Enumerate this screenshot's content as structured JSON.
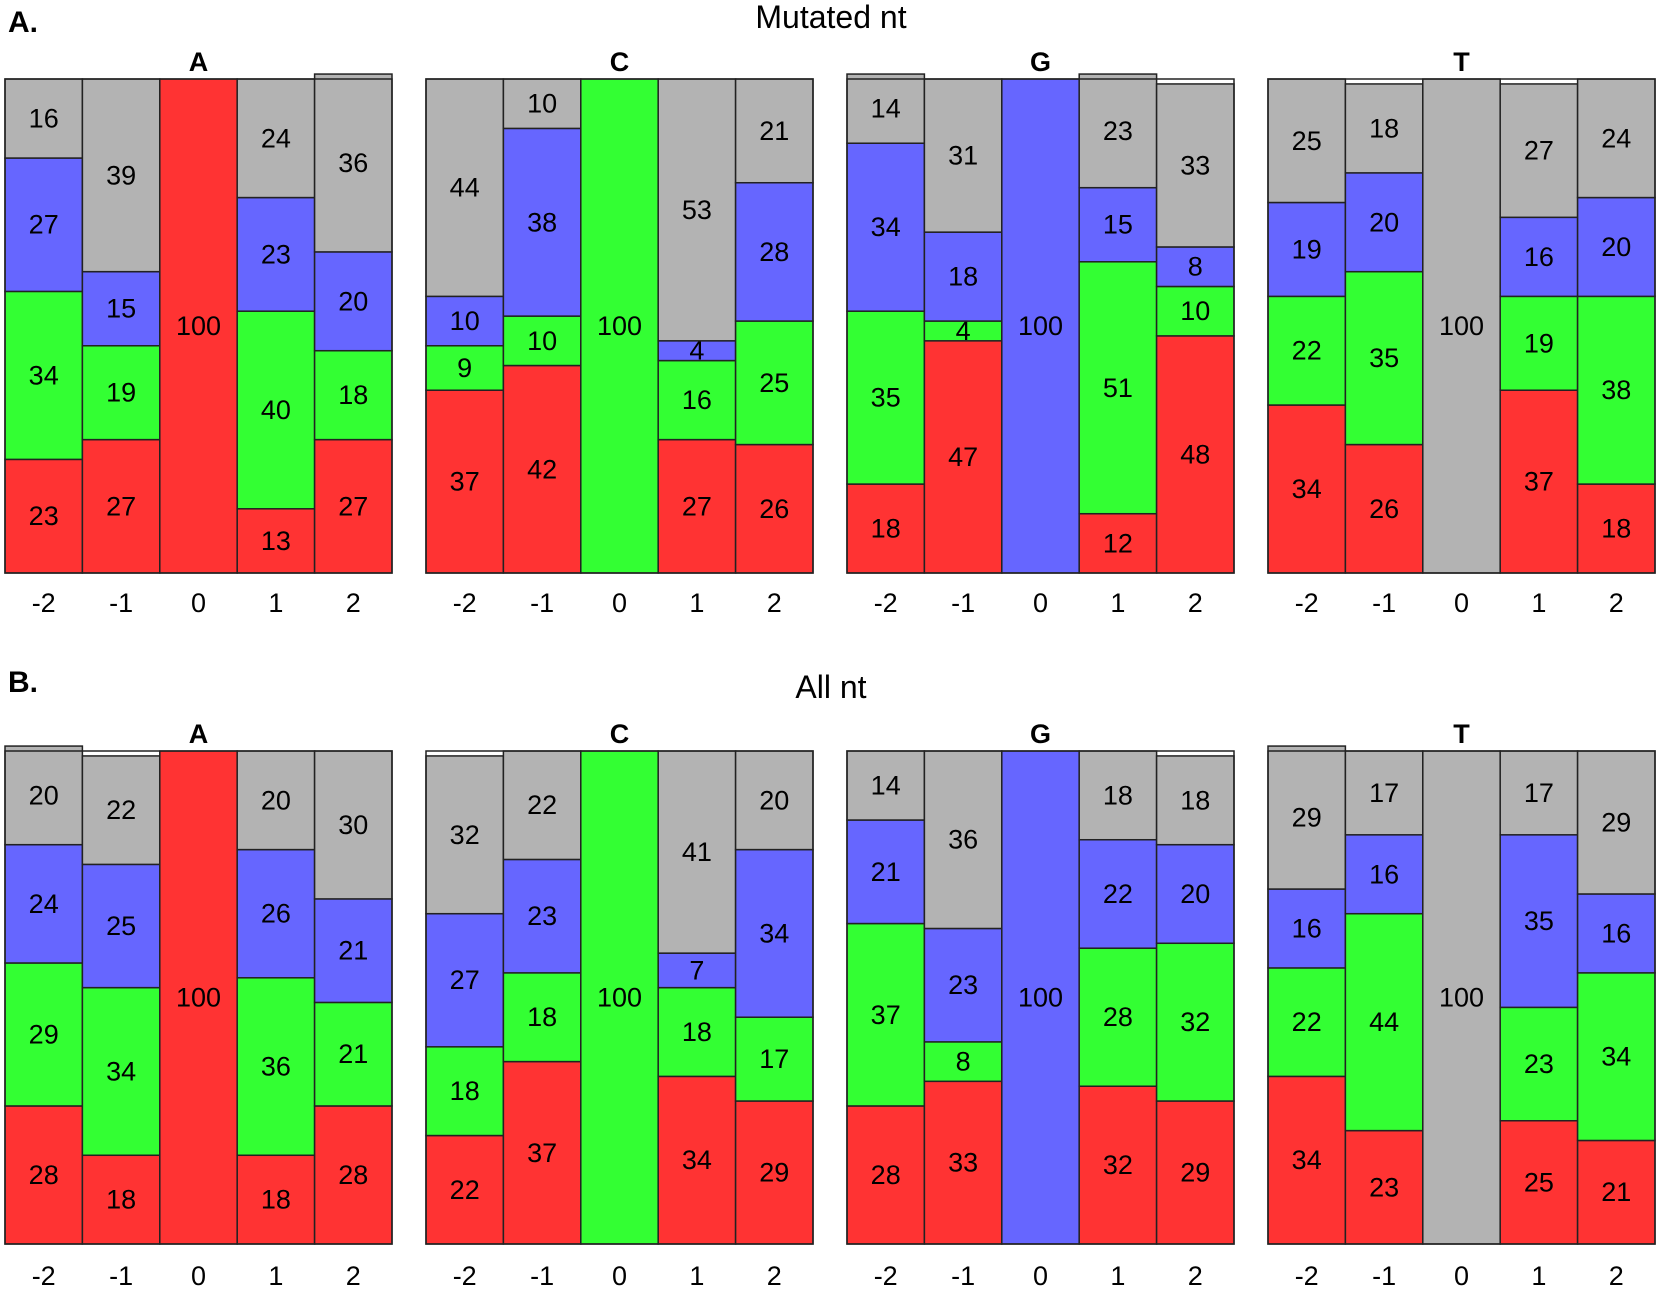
{
  "colors": {
    "A": "#ff3333",
    "C": "#33ff33",
    "G": "#6666ff",
    "T": "#b3b3b3"
  },
  "stack_order": [
    "A",
    "C",
    "G",
    "T"
  ],
  "chart_data": [
    {
      "type": "stacked-bar",
      "section_label": "A.",
      "title": "Mutated nt",
      "positions": [
        "-2",
        "-1",
        "0",
        "1",
        "2"
      ],
      "ylim": [
        0,
        100
      ],
      "panels": [
        {
          "nt": "A",
          "columns": [
            {
              "A": 23,
              "C": 34,
              "G": 27,
              "T": 16
            },
            {
              "A": 27,
              "C": 19,
              "G": 15,
              "T": 39
            },
            {
              "A": 100,
              "C": 0,
              "G": 0,
              "T": 0
            },
            {
              "A": 13,
              "C": 40,
              "G": 23,
              "T": 24
            },
            {
              "A": 27,
              "C": 18,
              "G": 20,
              "T": 36
            }
          ]
        },
        {
          "nt": "C",
          "columns": [
            {
              "A": 37,
              "C": 9,
              "G": 10,
              "T": 44
            },
            {
              "A": 42,
              "C": 10,
              "G": 38,
              "T": 10
            },
            {
              "A": 0,
              "C": 100,
              "G": 0,
              "T": 0
            },
            {
              "A": 27,
              "C": 16,
              "G": 4,
              "T": 53
            },
            {
              "A": 26,
              "C": 25,
              "G": 28,
              "T": 21
            }
          ]
        },
        {
          "nt": "G",
          "columns": [
            {
              "A": 18,
              "C": 35,
              "G": 34,
              "T": 14
            },
            {
              "A": 47,
              "C": 4,
              "G": 18,
              "T": 31
            },
            {
              "A": 0,
              "C": 0,
              "G": 100,
              "T": 0
            },
            {
              "A": 12,
              "C": 51,
              "G": 15,
              "T": 23
            },
            {
              "A": 48,
              "C": 10,
              "G": 8,
              "T": 33
            }
          ]
        },
        {
          "nt": "T",
          "columns": [
            {
              "A": 34,
              "C": 22,
              "G": 19,
              "T": 25
            },
            {
              "A": 26,
              "C": 35,
              "G": 20,
              "T": 18
            },
            {
              "A": 0,
              "C": 0,
              "G": 0,
              "T": 100
            },
            {
              "A": 37,
              "C": 19,
              "G": 16,
              "T": 27
            },
            {
              "A": 18,
              "C": 38,
              "G": 20,
              "T": 24
            }
          ]
        }
      ]
    },
    {
      "type": "stacked-bar",
      "section_label": "B.",
      "title": "All nt",
      "positions": [
        "-2",
        "-1",
        "0",
        "1",
        "2"
      ],
      "ylim": [
        0,
        100
      ],
      "panels": [
        {
          "nt": "A",
          "columns": [
            {
              "A": 28,
              "C": 29,
              "G": 24,
              "T": 20
            },
            {
              "A": 18,
              "C": 34,
              "G": 25,
              "T": 22
            },
            {
              "A": 100,
              "C": 0,
              "G": 0,
              "T": 0
            },
            {
              "A": 18,
              "C": 36,
              "G": 26,
              "T": 20
            },
            {
              "A": 28,
              "C": 21,
              "G": 21,
              "T": 30
            }
          ]
        },
        {
          "nt": "C",
          "columns": [
            {
              "A": 22,
              "C": 18,
              "G": 27,
              "T": 32
            },
            {
              "A": 37,
              "C": 18,
              "G": 23,
              "T": 22
            },
            {
              "A": 0,
              "C": 100,
              "G": 0,
              "T": 0
            },
            {
              "A": 34,
              "C": 18,
              "G": 7,
              "T": 41
            },
            {
              "A": 29,
              "C": 17,
              "G": 34,
              "T": 20
            }
          ]
        },
        {
          "nt": "G",
          "columns": [
            {
              "A": 28,
              "C": 37,
              "G": 21,
              "T": 14
            },
            {
              "A": 33,
              "C": 8,
              "G": 23,
              "T": 36
            },
            {
              "A": 0,
              "C": 0,
              "G": 100,
              "T": 0
            },
            {
              "A": 32,
              "C": 28,
              "G": 22,
              "T": 18
            },
            {
              "A": 29,
              "C": 32,
              "G": 20,
              "T": 18
            }
          ]
        },
        {
          "nt": "T",
          "columns": [
            {
              "A": 34,
              "C": 22,
              "G": 16,
              "T": 29
            },
            {
              "A": 23,
              "C": 44,
              "G": 16,
              "T": 17
            },
            {
              "A": 0,
              "C": 0,
              "G": 0,
              "T": 100
            },
            {
              "A": 25,
              "C": 23,
              "G": 35,
              "T": 17
            },
            {
              "A": 21,
              "C": 34,
              "G": 16,
              "T": 29
            }
          ]
        }
      ]
    }
  ]
}
